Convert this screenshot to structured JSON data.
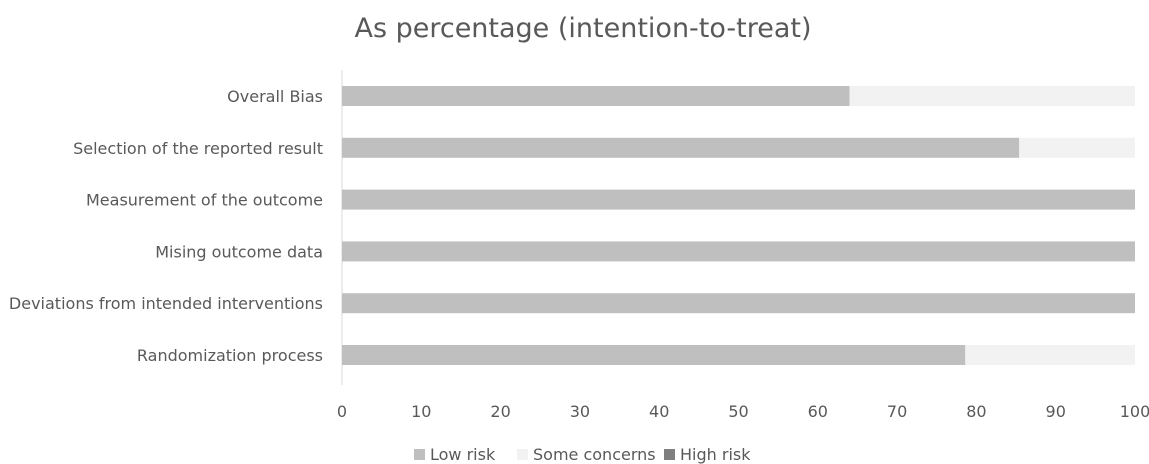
{
  "chart_data": {
    "type": "bar",
    "orientation": "horizontal",
    "stacked": true,
    "title": "As percentage (intention-to-treat)",
    "categories": [
      "Overall Bias",
      "Selection of the reported result",
      "Measurement of the outcome",
      "Mising outcome data",
      "Deviations from intended interventions",
      "Randomization process"
    ],
    "series": [
      {
        "name": "Low risk",
        "color": "#bfbfbf",
        "values": [
          64,
          85.4,
          100,
          100,
          100,
          78.6
        ]
      },
      {
        "name": "Some concerns",
        "color": "#f2f2f2",
        "values": [
          36,
          14.6,
          0,
          0,
          0,
          21.4
        ]
      },
      {
        "name": "High risk",
        "color": "#7f7f7f",
        "values": [
          0,
          0,
          0,
          0,
          0,
          0
        ]
      }
    ],
    "xlim": [
      0,
      100
    ],
    "xticks": [
      "0",
      "10",
      "20",
      "30",
      "40",
      "50",
      "60",
      "70",
      "80",
      "90",
      "100"
    ],
    "grid": false,
    "legend_position": "bottom"
  }
}
